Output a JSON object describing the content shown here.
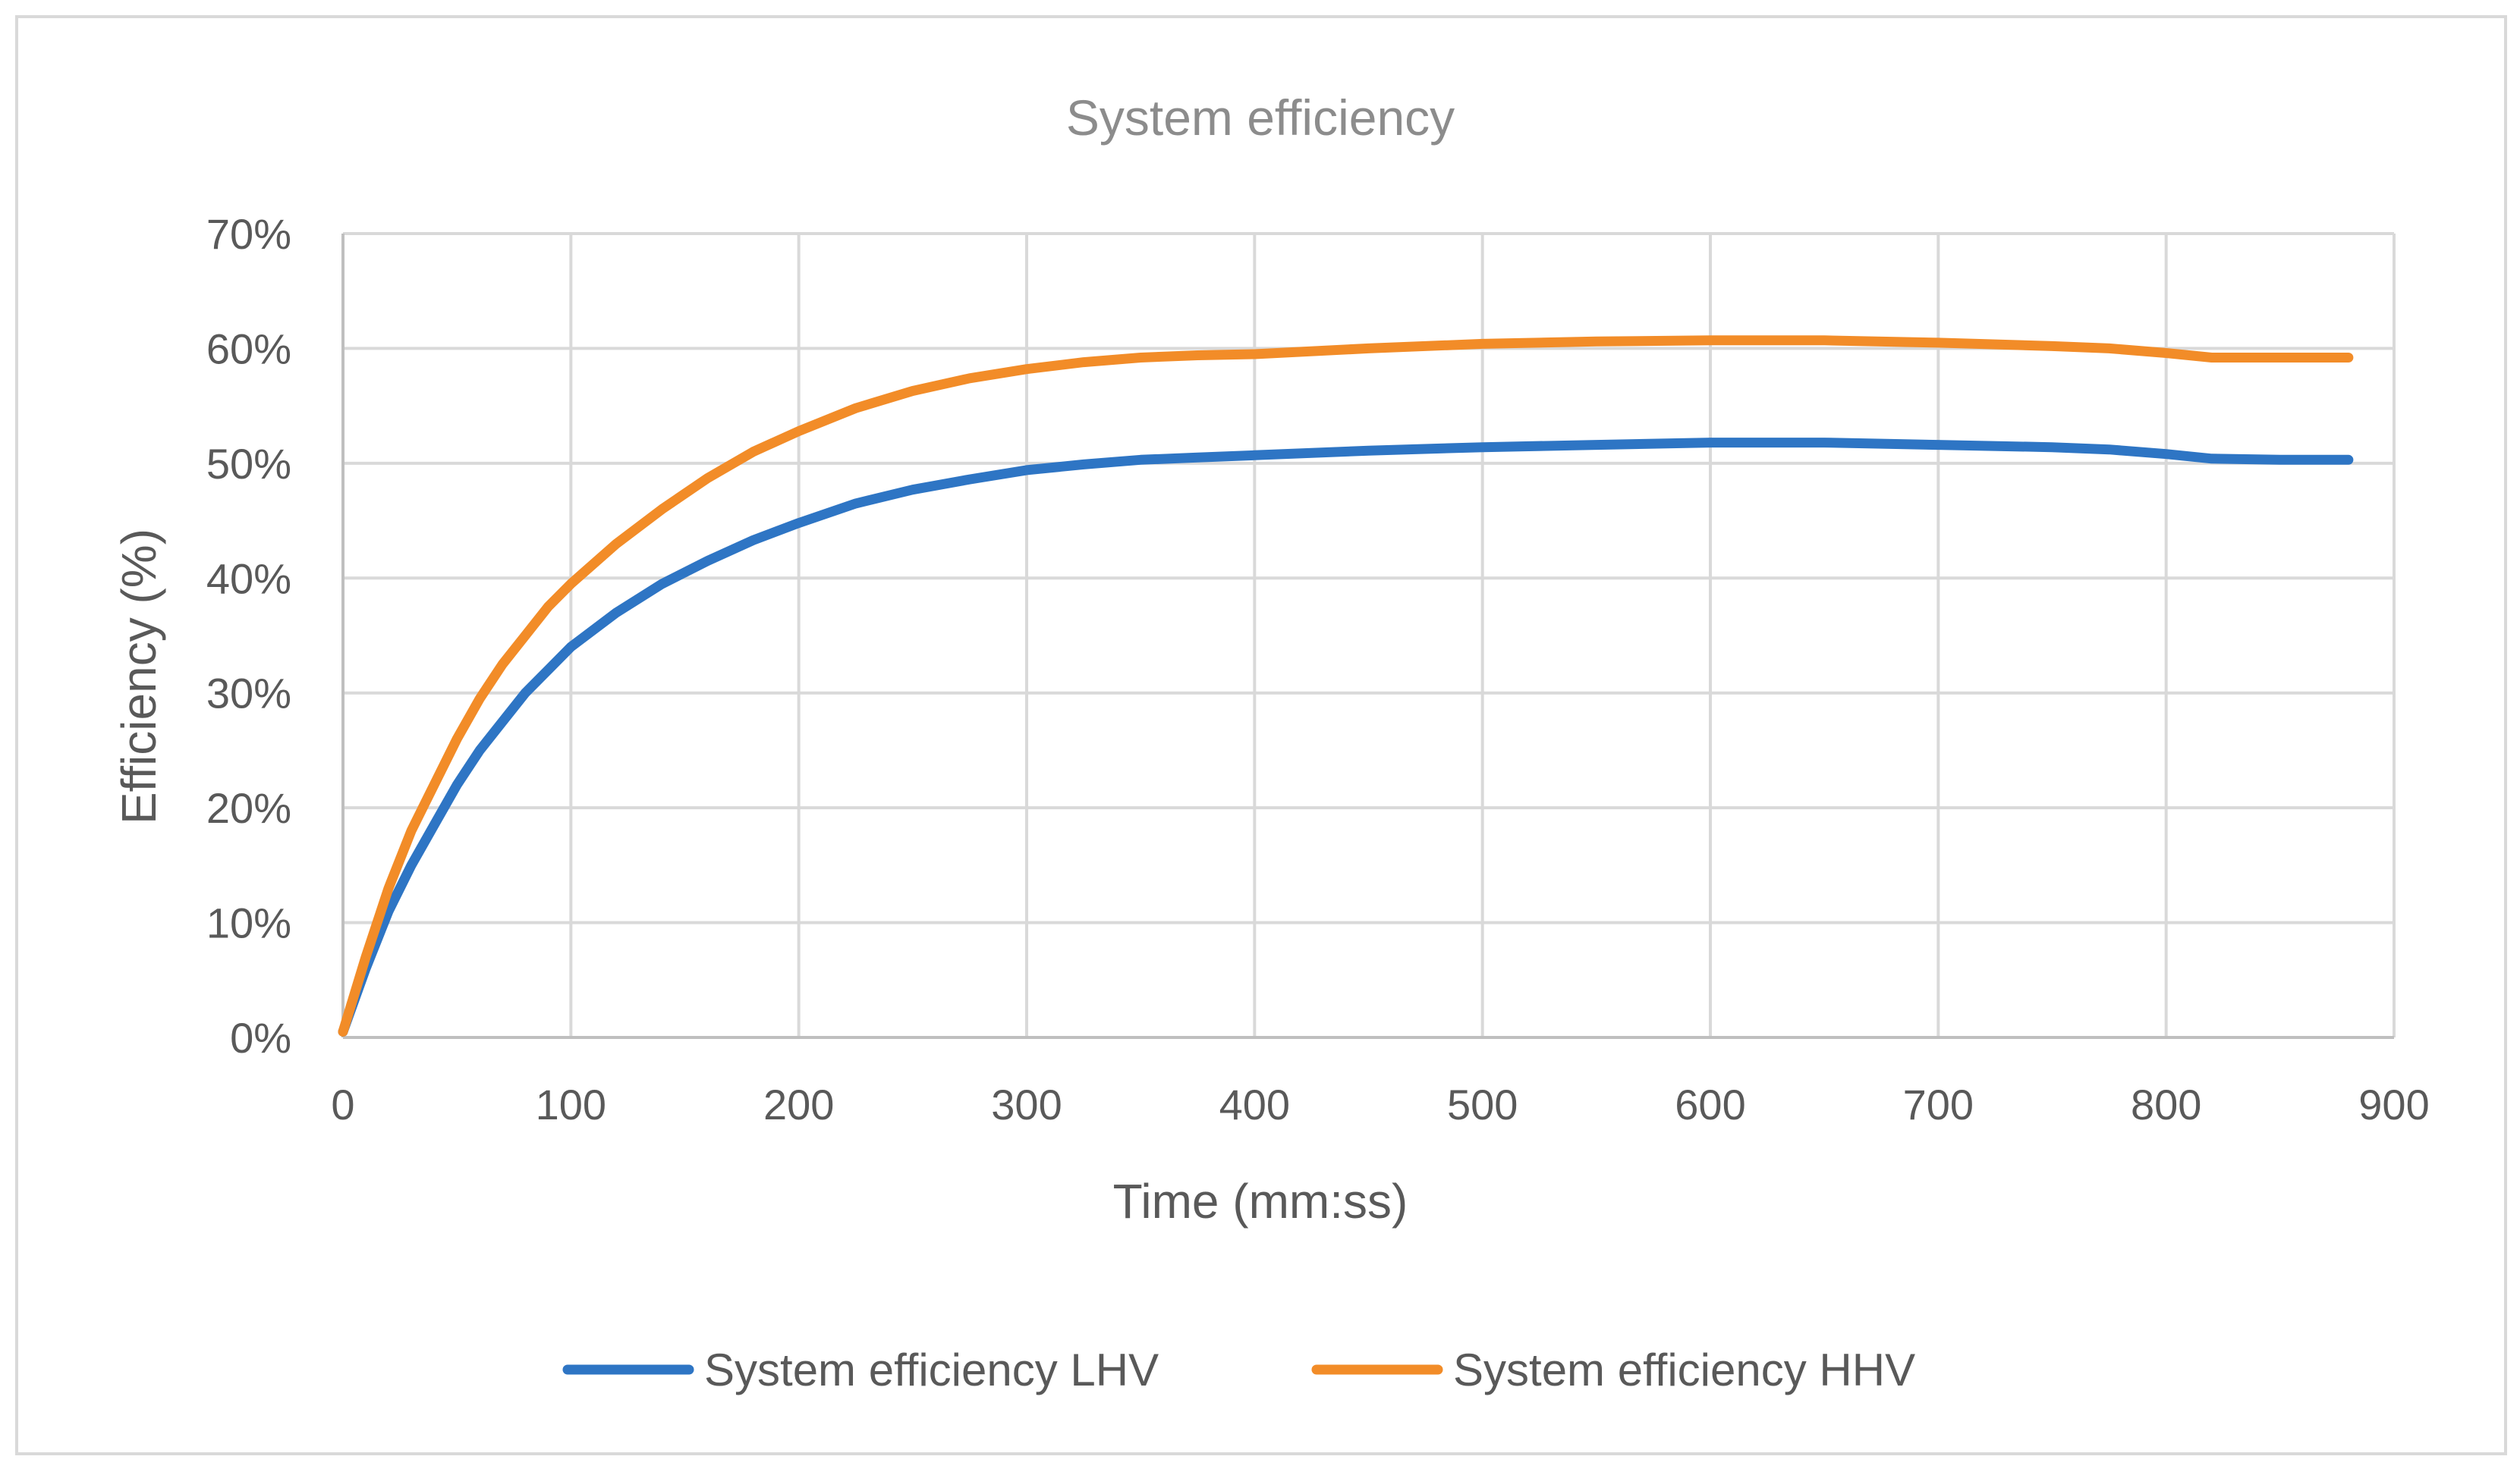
{
  "chart_data": {
    "type": "line",
    "title": "System efficiency",
    "xlabel": "Time (mm:ss)",
    "ylabel": "Efficiency (%)",
    "xlim": [
      0,
      900
    ],
    "ylim": [
      0,
      0.7
    ],
    "x_ticks": [
      0,
      100,
      200,
      300,
      400,
      500,
      600,
      700,
      800,
      900
    ],
    "x_tick_labels": [
      "0",
      "100",
      "200",
      "300",
      "400",
      "500",
      "600",
      "700",
      "800",
      "900"
    ],
    "y_ticks": [
      0,
      0.1,
      0.2,
      0.3,
      0.4,
      0.5,
      0.6,
      0.7
    ],
    "y_tick_labels": [
      "0%",
      "10%",
      "20%",
      "30%",
      "40%",
      "50%",
      "60%",
      "70%"
    ],
    "grid": true,
    "legend_position": "bottom",
    "x": [
      0,
      10,
      20,
      30,
      40,
      50,
      60,
      70,
      80,
      90,
      100,
      120,
      140,
      160,
      180,
      200,
      225,
      250,
      275,
      300,
      325,
      350,
      375,
      400,
      450,
      500,
      550,
      600,
      650,
      700,
      750,
      775,
      800,
      820,
      850,
      880
    ],
    "series": [
      {
        "name": "System efficiency LHV",
        "color": "#2e75c4",
        "values": [
          0.005,
          0.06,
          0.11,
          0.15,
          0.185,
          0.22,
          0.25,
          0.275,
          0.3,
          0.32,
          0.34,
          0.37,
          0.395,
          0.415,
          0.433,
          0.448,
          0.465,
          0.477,
          0.486,
          0.494,
          0.499,
          0.503,
          0.505,
          0.507,
          0.511,
          0.514,
          0.516,
          0.518,
          0.518,
          0.516,
          0.514,
          0.512,
          0.508,
          0.504,
          0.503,
          0.503
        ]
      },
      {
        "name": "System efficiency HHV",
        "color": "#f28c28",
        "values": [
          0.005,
          0.07,
          0.13,
          0.18,
          0.22,
          0.26,
          0.295,
          0.325,
          0.35,
          0.375,
          0.395,
          0.43,
          0.46,
          0.487,
          0.51,
          0.528,
          0.548,
          0.563,
          0.574,
          0.582,
          0.588,
          0.592,
          0.594,
          0.595,
          0.6,
          0.604,
          0.606,
          0.607,
          0.607,
          0.605,
          0.602,
          0.6,
          0.596,
          0.592,
          0.592,
          0.592
        ]
      }
    ]
  }
}
